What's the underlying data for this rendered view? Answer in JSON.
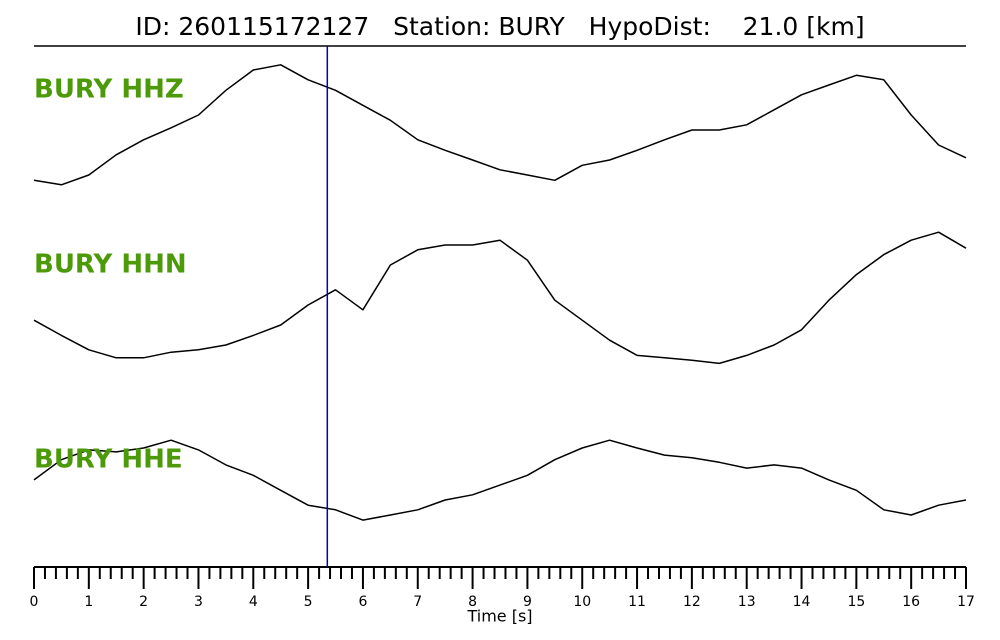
{
  "chart_data": {
    "type": "line",
    "title": "ID: 260115172127   Station: BURY   HypoDist:    21.0 [km]",
    "xlabel": "Time [s]",
    "xlim": [
      0,
      17
    ],
    "xticks": [
      0,
      1,
      2,
      3,
      4,
      5,
      6,
      7,
      8,
      9,
      10,
      11,
      12,
      13,
      14,
      15,
      16,
      17
    ],
    "xminorticks": [
      0.2,
      0.4,
      0.6,
      0.8,
      1.2,
      1.4,
      1.6,
      1.8,
      2.2,
      2.4,
      2.6,
      2.8,
      3.2,
      3.4,
      3.6,
      3.8,
      4.2,
      4.4,
      4.6,
      4.8,
      5.2,
      5.4,
      5.6,
      5.8,
      6.2,
      6.4,
      6.6,
      6.8,
      7.2,
      7.4,
      7.6,
      7.8,
      8.2,
      8.4,
      8.6,
      8.8,
      9.2,
      9.4,
      9.6,
      9.8,
      10.2,
      10.4,
      10.6,
      10.8,
      11.2,
      11.4,
      11.6,
      11.8,
      12.2,
      12.4,
      12.6,
      12.8,
      13.2,
      13.4,
      13.6,
      13.8,
      14.2,
      14.4,
      14.6,
      14.8,
      15.2,
      15.4,
      15.6,
      15.8,
      16.2,
      16.4,
      16.6,
      16.8
    ],
    "ylim": [
      -1,
      1
    ],
    "pick_time": 5.35,
    "pick_color": "#0000cc",
    "label_color": "#4c9a0a",
    "x": [
      0,
      0.5,
      1,
      1.5,
      2,
      2.5,
      3,
      3.5,
      4,
      4.5,
      5,
      5.5,
      6,
      6.5,
      7,
      7.5,
      8,
      8.5,
      9,
      9.5,
      10,
      10.5,
      11,
      11.5,
      12,
      12.5,
      13,
      13.5,
      14,
      14.5,
      15,
      15.5,
      16,
      16.5,
      17
    ],
    "series": [
      {
        "name": "BURY HHZ",
        "color": "#000000",
        "values": [
          -0.67,
          -0.73,
          -0.6,
          -0.33,
          -0.13,
          0.03,
          0.2,
          0.53,
          0.8,
          0.87,
          0.67,
          0.53,
          0.33,
          0.13,
          -0.13,
          -0.27,
          -0.4,
          -0.53,
          -0.6,
          -0.67,
          -0.47,
          -0.4,
          -0.27,
          -0.13,
          0,
          0,
          0.07,
          0.27,
          0.47,
          0.6,
          0.73,
          0.67,
          0.2,
          -0.2,
          -0.37
        ]
      },
      {
        "name": "BURY HHN",
        "color": "#000000",
        "values": [
          -0.19,
          -0.38,
          -0.56,
          -0.66,
          -0.66,
          -0.59,
          -0.56,
          -0.5,
          -0.38,
          -0.25,
          0,
          0.19,
          -0.06,
          0.5,
          0.69,
          0.75,
          0.75,
          0.81,
          0.56,
          0.06,
          -0.19,
          -0.44,
          -0.63,
          -0.66,
          -0.69,
          -0.73,
          -0.63,
          -0.5,
          -0.31,
          0.06,
          0.38,
          0.63,
          0.81,
          0.91,
          0.71
        ]
      },
      {
        "name": "BURY HHE",
        "color": "#000000",
        "values": [
          0.31,
          0.62,
          0.77,
          0.74,
          0.8,
          0.92,
          0.77,
          0.54,
          0.38,
          0.15,
          -0.08,
          -0.15,
          -0.31,
          -0.23,
          -0.15,
          0,
          0.08,
          0.23,
          0.38,
          0.62,
          0.8,
          0.92,
          0.8,
          0.69,
          0.65,
          0.58,
          0.49,
          0.54,
          0.49,
          0.31,
          0.15,
          -0.15,
          -0.23,
          -0.08,
          0
        ]
      }
    ]
  }
}
